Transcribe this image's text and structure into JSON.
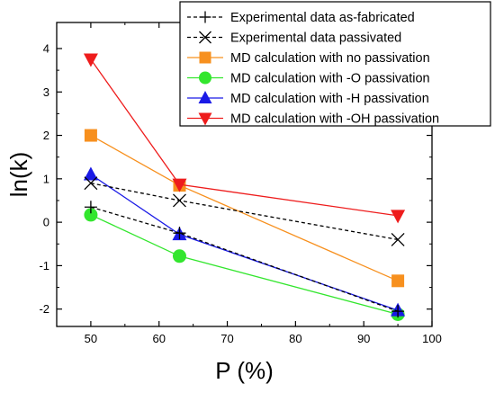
{
  "chart_data": {
    "type": "line",
    "title": "",
    "xlabel": "P (%)",
    "ylabel": "ln(k)",
    "xlim": [
      45,
      100
    ],
    "ylim": [
      -2.4,
      4.6
    ],
    "xticks": [
      50,
      60,
      70,
      80,
      90,
      100
    ],
    "yticks": [
      -2,
      -1,
      0,
      1,
      2,
      3,
      4
    ],
    "grid": false,
    "legend_position": "top-right",
    "series": [
      {
        "name": "Experimental data as-fabricated",
        "color": "#000000",
        "marker": "plus",
        "dashed": true,
        "x": [
          50,
          63,
          95
        ],
        "y": [
          0.35,
          -0.25,
          -2.05
        ]
      },
      {
        "name": "Experimental data passivated",
        "color": "#000000",
        "marker": "cross",
        "dashed": true,
        "x": [
          50,
          63,
          95
        ],
        "y": [
          0.9,
          0.5,
          -0.4
        ]
      },
      {
        "name": "MD calculation with no passivation",
        "color": "#f7901e",
        "marker": "square",
        "dashed": false,
        "x": [
          50,
          63,
          95
        ],
        "y": [
          2.0,
          0.85,
          -1.35
        ]
      },
      {
        "name": "MD calculation with -O passivation",
        "color": "#33e62e",
        "marker": "circle",
        "dashed": false,
        "x": [
          50,
          63,
          95
        ],
        "y": [
          0.17,
          -0.78,
          -2.12
        ]
      },
      {
        "name": "MD calculation with -H passivation",
        "color": "#1a1ae6",
        "marker": "triangle-up",
        "dashed": false,
        "x": [
          50,
          63,
          95
        ],
        "y": [
          1.1,
          -0.28,
          -2.03
        ]
      },
      {
        "name": "MD calculation with -OH passivation",
        "color": "#ee1c1c",
        "marker": "triangle-down",
        "dashed": false,
        "x": [
          50,
          63,
          95
        ],
        "y": [
          3.75,
          0.87,
          0.15
        ]
      }
    ]
  }
}
